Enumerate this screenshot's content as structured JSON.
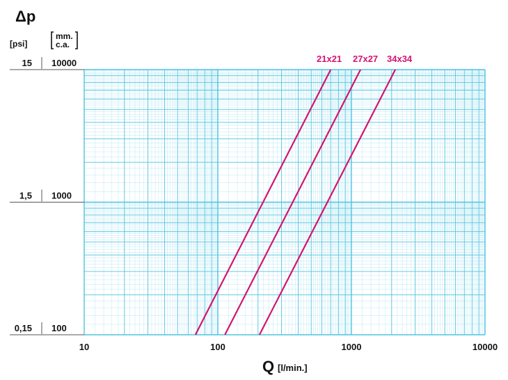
{
  "chart_data": {
    "type": "line",
    "title": "",
    "x_axis": {
      "label": "Q",
      "unit": "[l/min.]",
      "scale": "log",
      "range": [
        10,
        10000
      ],
      "tick_labels": [
        "10",
        "100",
        "1000",
        "10000"
      ]
    },
    "y_axis": {
      "label": "Δp",
      "scale": "log",
      "range_mm_ca": [
        100,
        10000
      ],
      "unit_left": "[psi]",
      "unit_right_line1": "mm.",
      "unit_right_line2": "c.a.",
      "tick_labels_psi": [
        "0,15",
        "1,5",
        "15"
      ],
      "tick_labels_mm_ca": [
        "100",
        "1000",
        "10000"
      ]
    },
    "grid": true,
    "colors": {
      "grid": "#4ec3e0",
      "series": "#d4146f",
      "axis_text": "#111111"
    },
    "series": [
      {
        "name": "21x21",
        "label_position": "top-end",
        "points": [
          {
            "x": 68,
            "y": 100
          },
          {
            "x": 700,
            "y": 10000
          }
        ]
      },
      {
        "name": "27x27",
        "label_position": "top-end",
        "points": [
          {
            "x": 113,
            "y": 100
          },
          {
            "x": 1170,
            "y": 10000
          }
        ]
      },
      {
        "name": "34x34",
        "label_position": "top-end",
        "points": [
          {
            "x": 205,
            "y": 100
          },
          {
            "x": 2130,
            "y": 10000
          }
        ]
      }
    ]
  }
}
